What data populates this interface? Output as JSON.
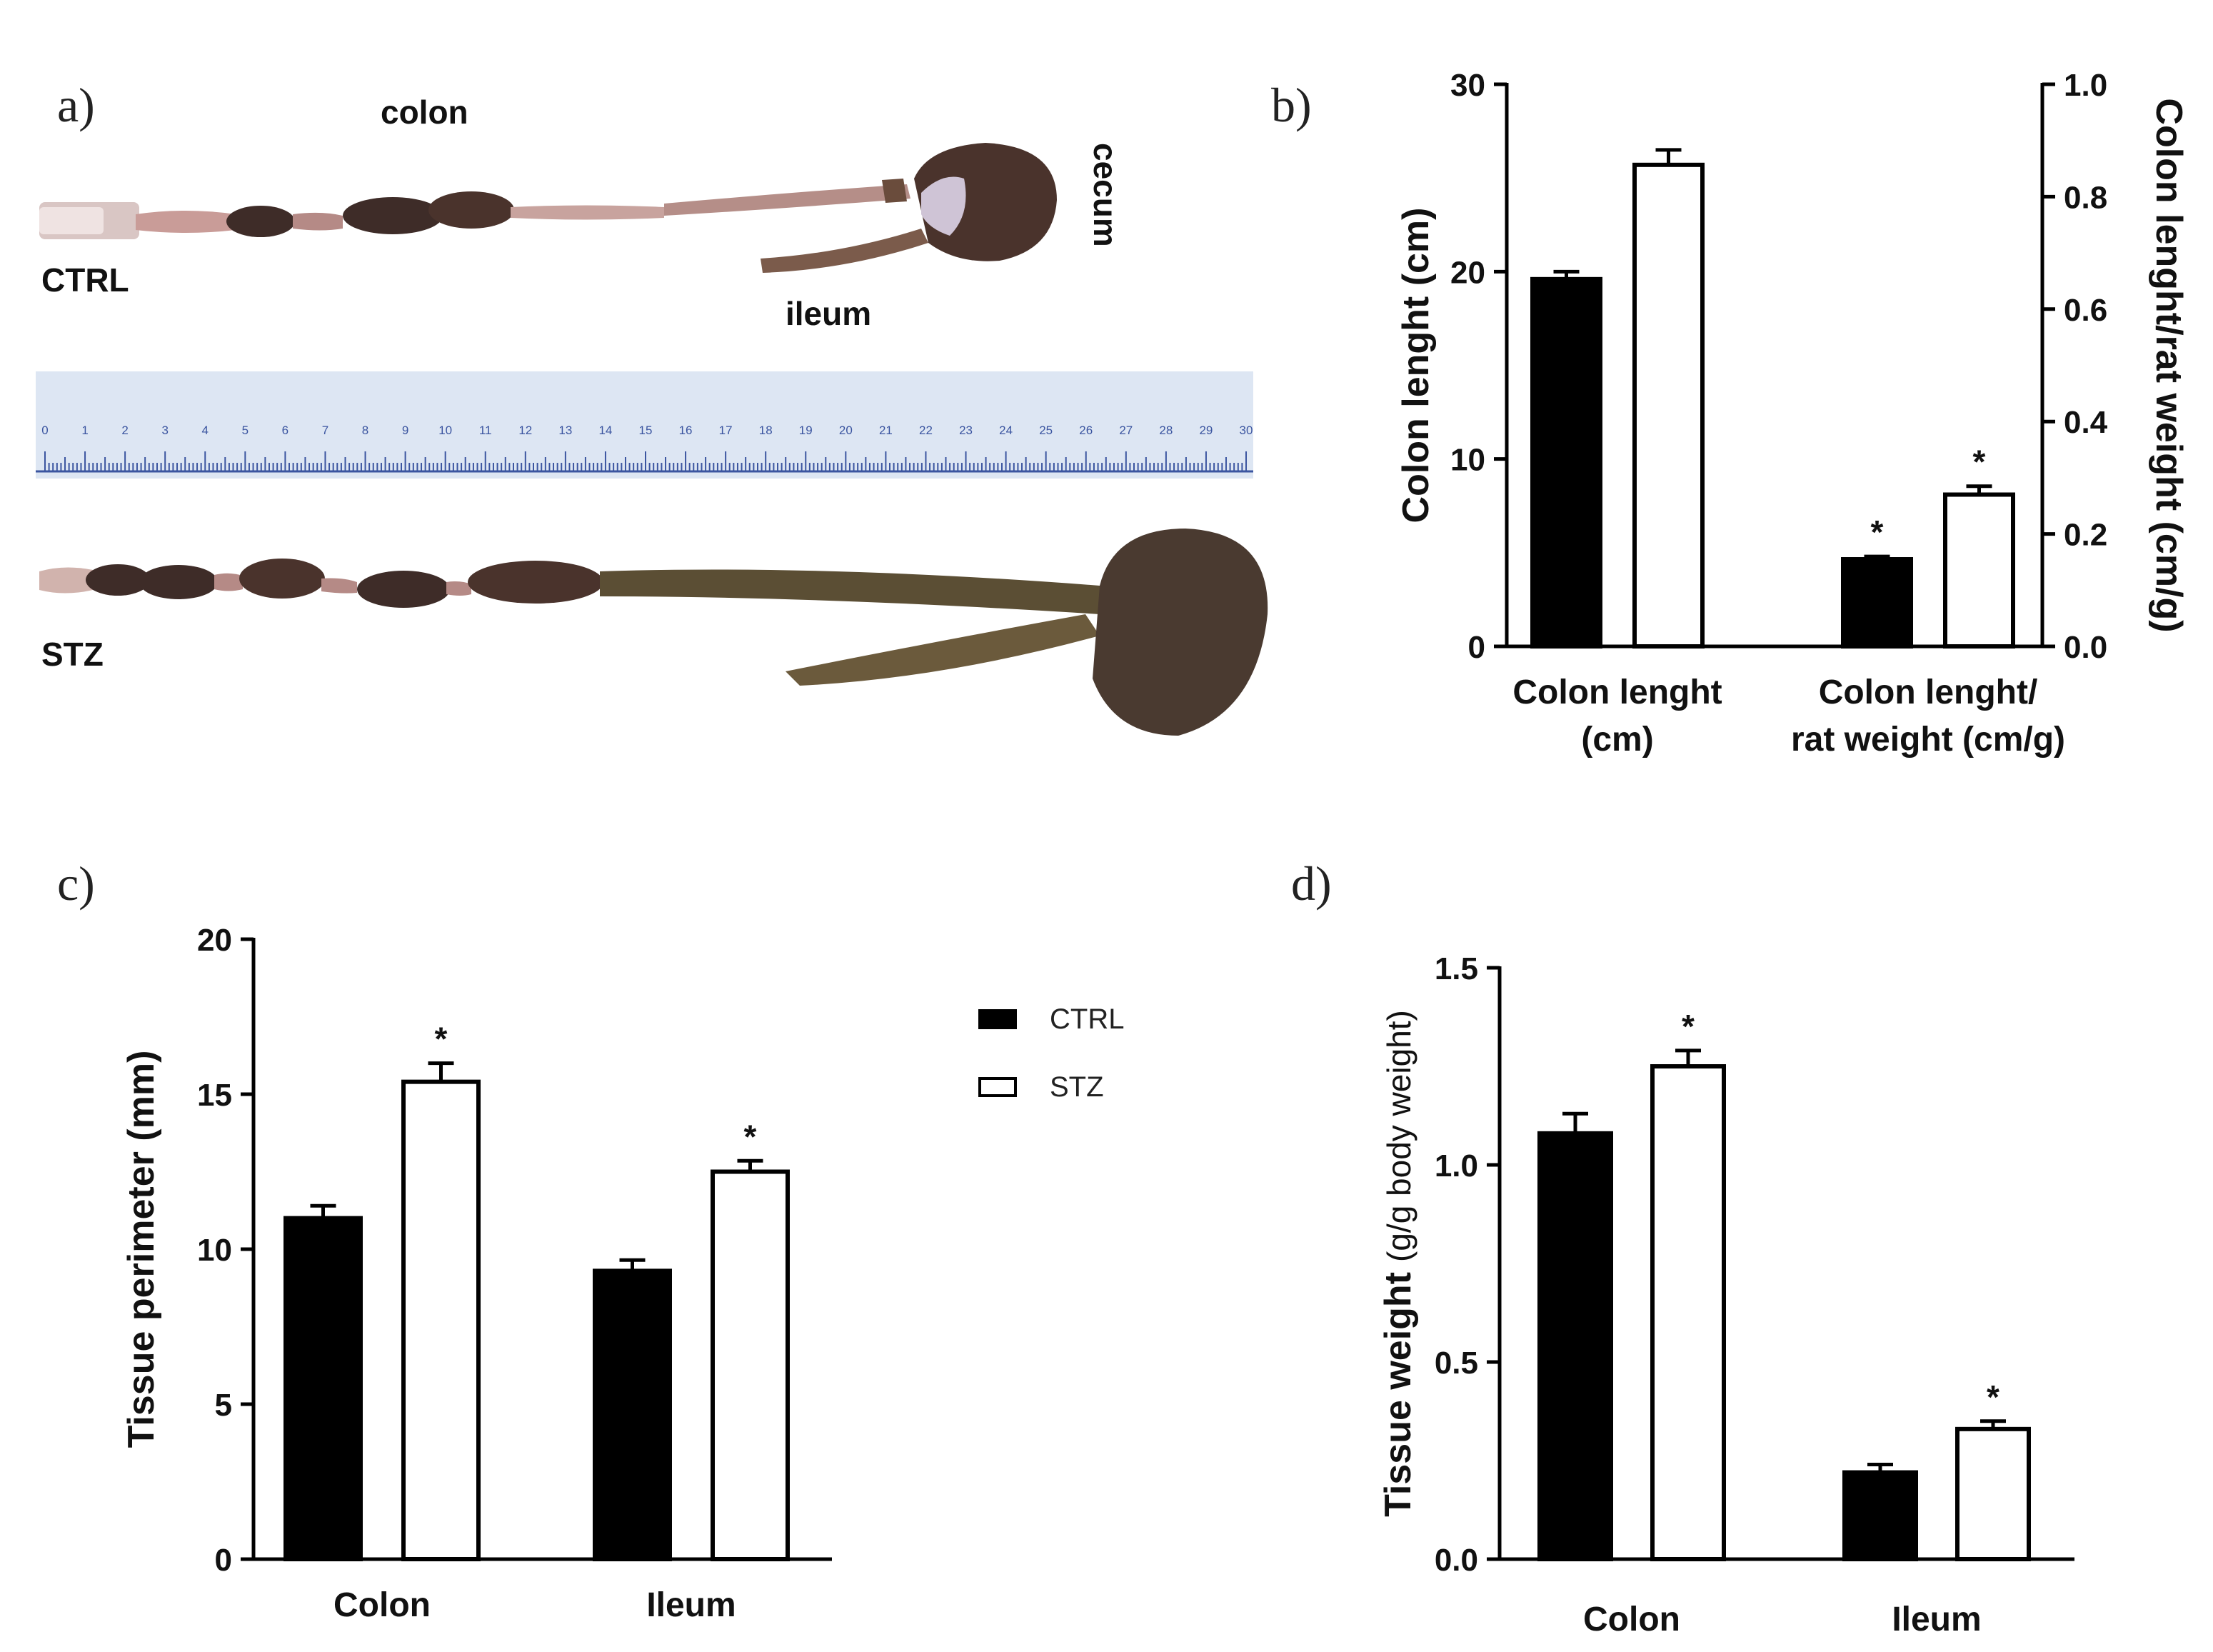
{
  "panels": {
    "a": "a)",
    "b": "b)",
    "c": "c)",
    "d": "d)"
  },
  "photo": {
    "labels": {
      "colon": "colon",
      "cecum": "cecum",
      "ileum": "ileum",
      "ctrl": "CTRL",
      "stz": "STZ"
    },
    "ruler": {
      "ticks": [
        "0",
        "1",
        "2",
        "3",
        "4",
        "5",
        "6",
        "7",
        "8",
        "9",
        "10",
        "11",
        "12",
        "13",
        "14",
        "15",
        "16",
        "17",
        "18",
        "19",
        "20",
        "21",
        "22",
        "23",
        "24",
        "25",
        "26",
        "27",
        "28",
        "29",
        "30"
      ]
    },
    "colors": {
      "ruler_bg": "#dde6f3",
      "ruler_ink": "#3b55a0",
      "tissue_dark": "#3e2c28",
      "tissue_mid": "#6a4c3c",
      "tissue_pink": "#c99c98",
      "tissue_olive": "#5b4e34"
    }
  },
  "legend": {
    "items": [
      {
        "label": "CTRL",
        "fill": "#000000"
      },
      {
        "label": "STZ",
        "fill": "#ffffff"
      }
    ]
  },
  "chart_data": [
    {
      "panel": "b",
      "type": "bar",
      "categories": [
        "Colon lenght\n(cm)",
        "Colon lenght/\nrat weight (cm/g)"
      ],
      "series": [
        {
          "name": "CTRL",
          "values": [
            19.6,
            0.155
          ],
          "errors": [
            0.4,
            0.005
          ],
          "axis": [
            "left",
            "right"
          ]
        },
        {
          "name": "STZ",
          "values": [
            25.7,
            0.27
          ],
          "errors": [
            0.8,
            0.015
          ],
          "axis": [
            "left",
            "right"
          ]
        }
      ],
      "significance": [
        [
          false,
          true
        ],
        [
          false,
          true
        ]
      ],
      "ylabel": "Colon lenght (cm)",
      "ylim": [
        0,
        30
      ],
      "yticks": [
        "0",
        "10",
        "20",
        "30"
      ],
      "y2label": "Colon lenght/rat weight (cm/g)",
      "y2lim": [
        0,
        1.0
      ],
      "y2ticks": [
        "0.0",
        "0.2",
        "0.4",
        "0.6",
        "0.8",
        "1.0"
      ],
      "grid": false
    },
    {
      "panel": "c",
      "type": "bar",
      "categories": [
        "Colon",
        "Ileum"
      ],
      "series": [
        {
          "name": "CTRL",
          "values": [
            11.0,
            9.3
          ],
          "errors": [
            0.4,
            0.35
          ]
        },
        {
          "name": "STZ",
          "values": [
            15.4,
            12.5
          ],
          "errors": [
            0.6,
            0.35
          ]
        }
      ],
      "significance": [
        [
          false,
          false
        ],
        [
          true,
          true
        ]
      ],
      "ylabel": "Tissue perimeter (mm)",
      "ylim": [
        0,
        20
      ],
      "yticks": [
        "0",
        "5",
        "10",
        "15",
        "20"
      ],
      "grid": false,
      "legend": "right"
    },
    {
      "panel": "d",
      "type": "bar",
      "categories": [
        "Colon",
        "Ileum"
      ],
      "series": [
        {
          "name": "CTRL",
          "values": [
            1.08,
            0.22
          ],
          "errors": [
            0.05,
            0.02
          ]
        },
        {
          "name": "STZ",
          "values": [
            1.25,
            0.33
          ],
          "errors": [
            0.04,
            0.02
          ]
        }
      ],
      "significance": [
        [
          false,
          false
        ],
        [
          true,
          true
        ]
      ],
      "ylabel": "Tissue weight",
      "ylabel_unit": "(g/g body weight)",
      "ylim": [
        0,
        1.5
      ],
      "yticks": [
        "0.0",
        "0.5",
        "1.0",
        "1.5"
      ],
      "grid": false
    }
  ]
}
